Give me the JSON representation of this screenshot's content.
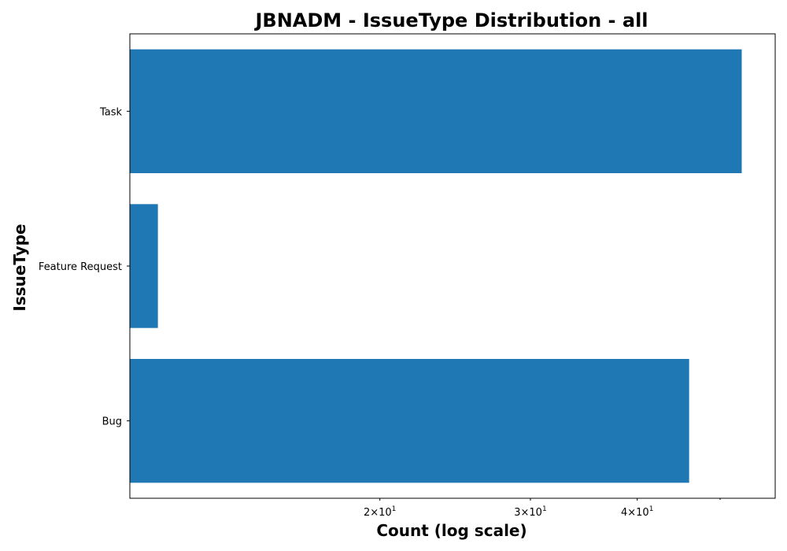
{
  "chart_data": {
    "type": "bar",
    "orientation": "horizontal",
    "title": "JBNADM - IssueType Distribution - all",
    "xlabel": "Count (log scale)",
    "ylabel": "IssueType",
    "categories": [
      "Task",
      "Feature Request",
      "Bug"
    ],
    "values": [
      53,
      11,
      46
    ],
    "x_scale": "log",
    "xlim": [
      10.2,
      58
    ],
    "x_ticks": [
      {
        "value": 20,
        "base": "2×10",
        "exp": "1"
      },
      {
        "value": 30,
        "base": "3×10",
        "exp": "1"
      },
      {
        "value": 40,
        "base": "4×10",
        "exp": "1"
      }
    ],
    "x_minor_ticks": [
      50
    ],
    "bar_color": "#1f77b4",
    "grid": false,
    "legend": false
  }
}
